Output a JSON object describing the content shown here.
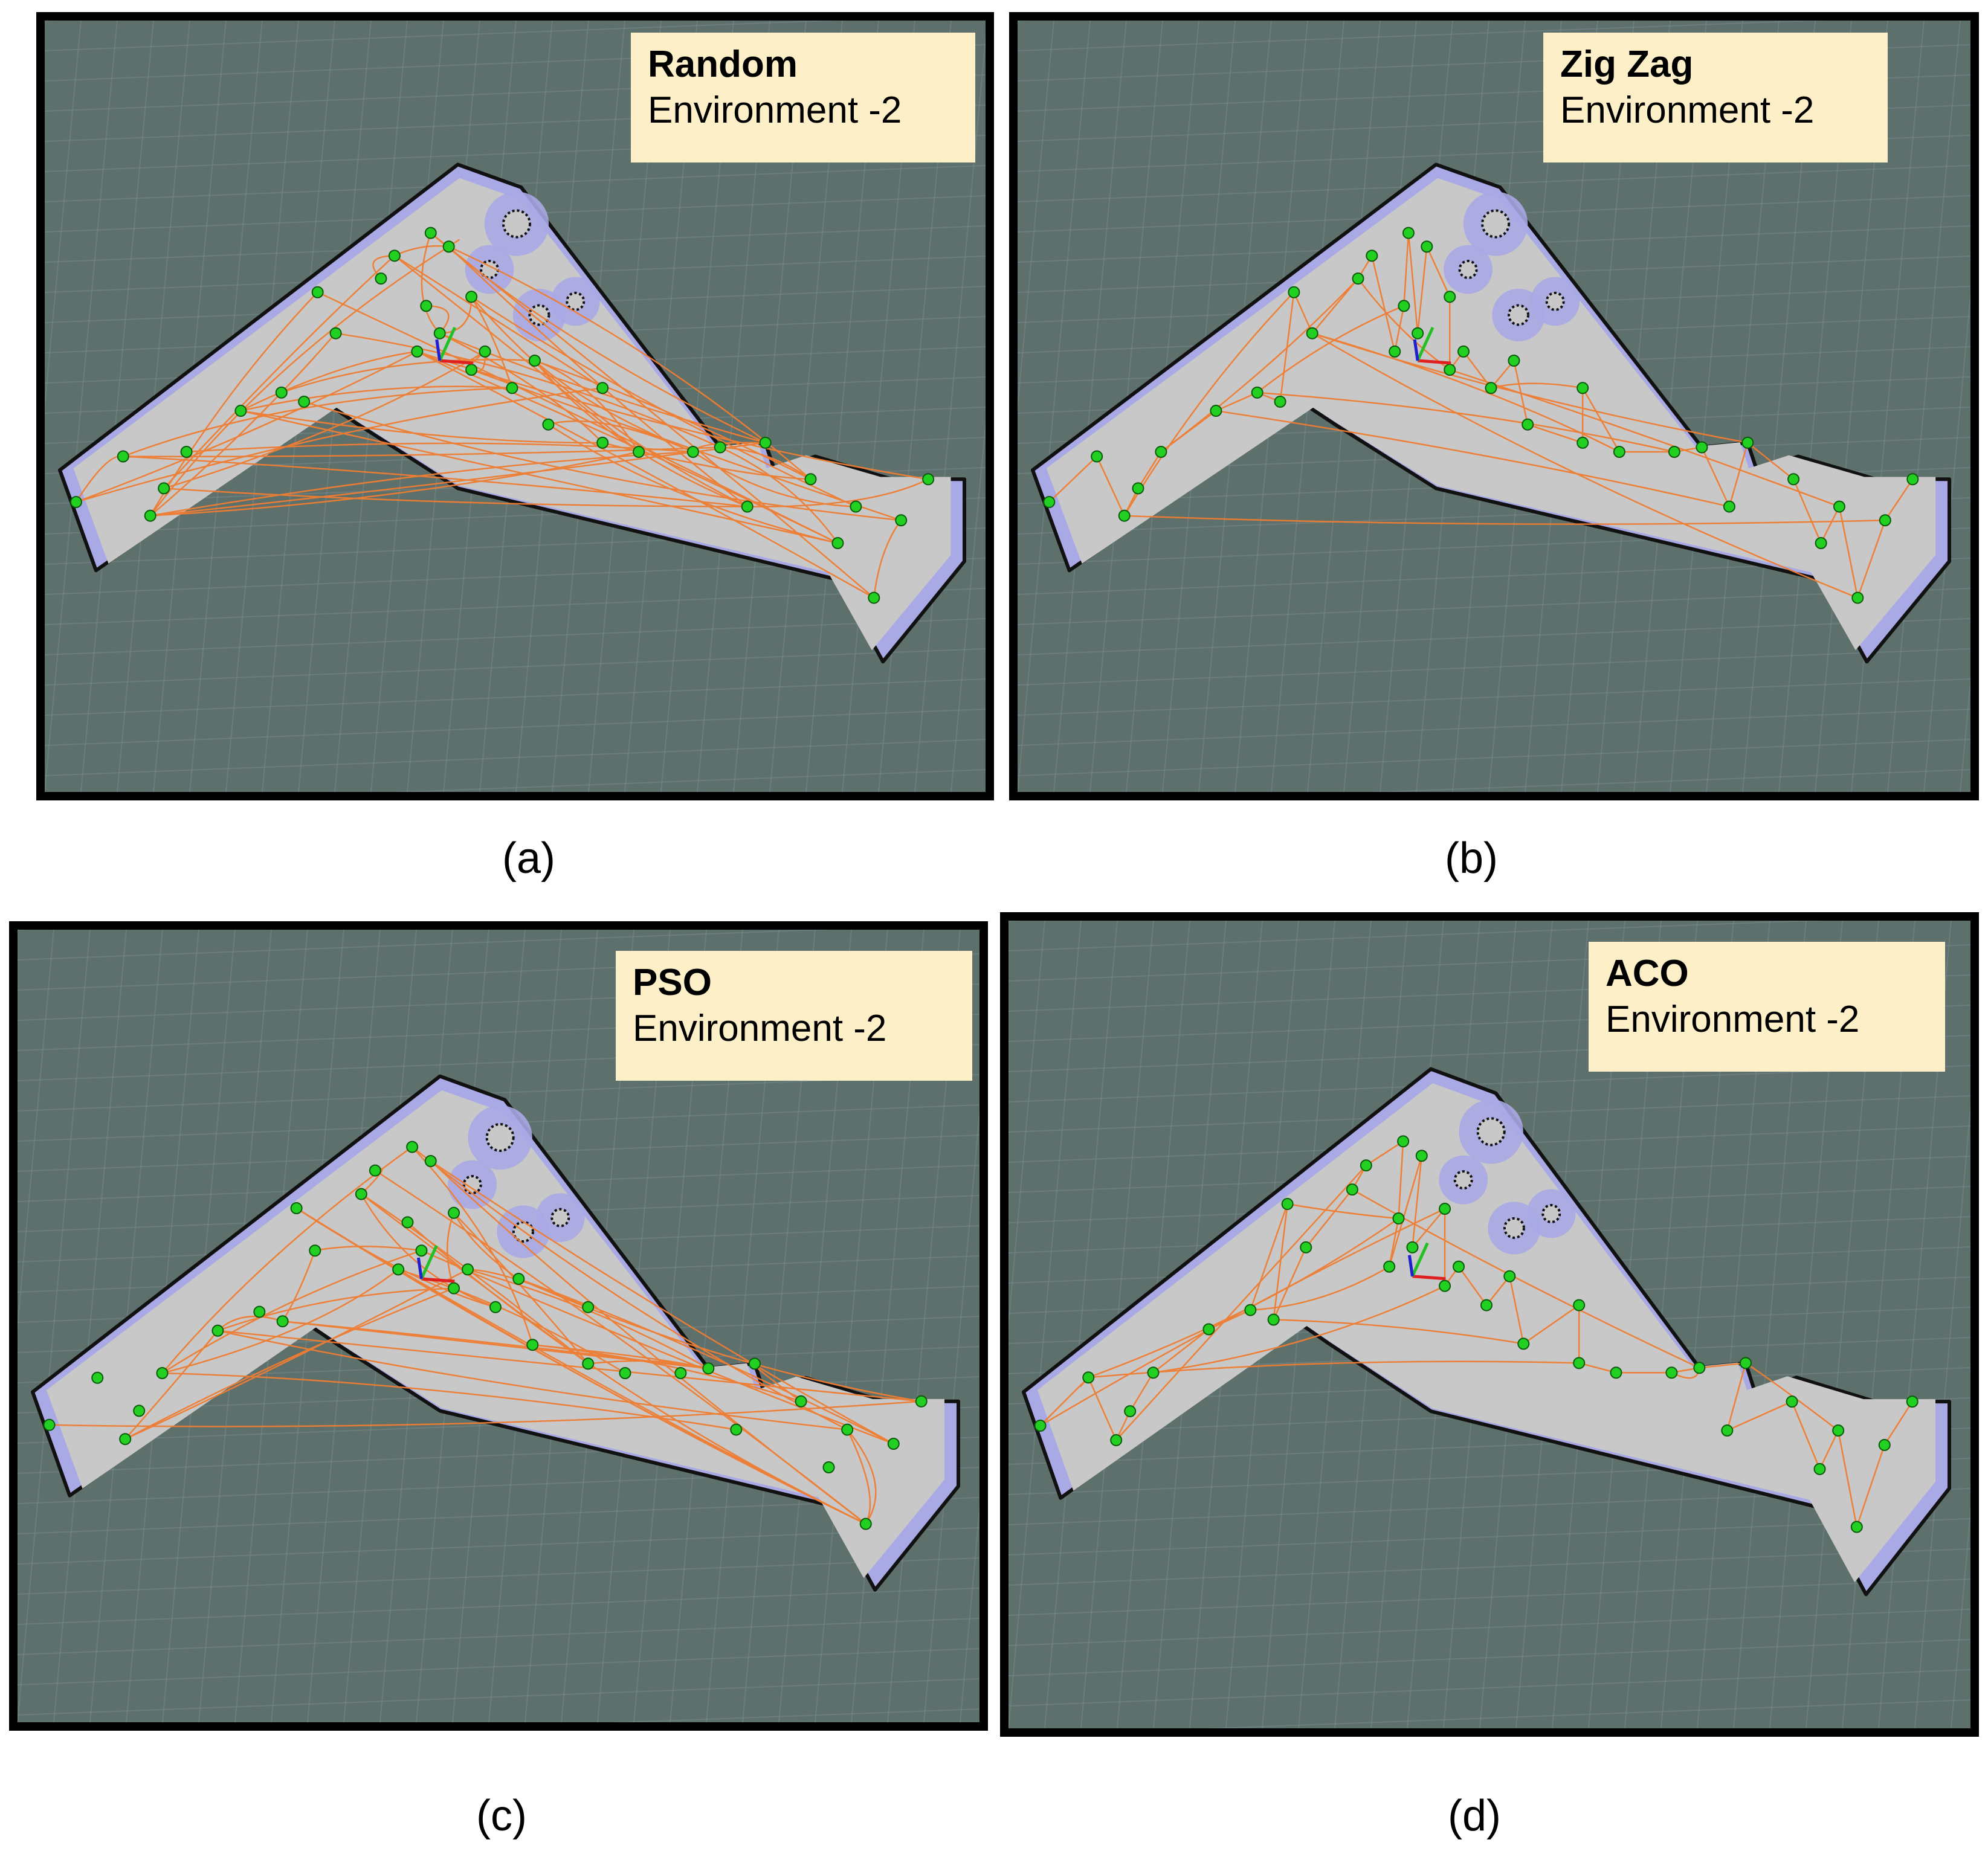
{
  "figure": {
    "panels": [
      {
        "id": "a",
        "method": "Random",
        "environment": "Environment -2",
        "caption": "(a)",
        "path_style": "random"
      },
      {
        "id": "b",
        "method": "Zig Zag",
        "environment": "Environment -2",
        "caption": "(b)",
        "path_style": "zigzag"
      },
      {
        "id": "c",
        "method": "PSO",
        "environment": "Environment -2",
        "caption": "(c)",
        "path_style": "pso"
      },
      {
        "id": "d",
        "method": "ACO",
        "environment": "Environment -2",
        "caption": "(d)",
        "path_style": "aco"
      }
    ]
  },
  "colors": {
    "background": "#5e706c",
    "grid": "#77898a",
    "map_floor": "#c8c8c8",
    "map_inflation": "#a9a9e6",
    "map_wall": "#111111",
    "waypoint": "#22d022",
    "path": "#f07d32",
    "axis_x": "#e02020",
    "axis_y": "#22c022",
    "axis_z": "#2020d0"
  },
  "icons": [
    "waypoint-marker-icon",
    "robot-axes-icon"
  ]
}
